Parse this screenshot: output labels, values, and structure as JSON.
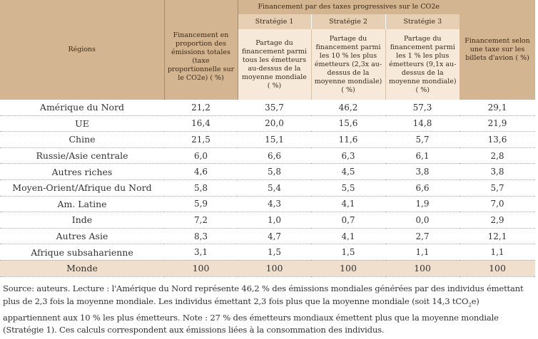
{
  "header": {
    "regions": "Régions",
    "proportional": "Financement en proportion des émissions totales (taxe proportionnelle sur le CO2e) ( %)",
    "progressive": "Financement par des taxes progressives sur le CO2e",
    "strategies": [
      {
        "label": "Stratégie 1",
        "desc": "Partage du financement parmi tous les émetteurs au-dessus de la moyenne mondiale ( %)"
      },
      {
        "label": "Stratégie 2",
        "desc": "Partage du financement parmi les 10 % les plus émetteurs (2,3x au-dessus de la moyenne mondiale) ( %)"
      },
      {
        "label": "Stratégie 3",
        "desc": "Partage du financement parmi les 1 % les plus émetteurs (9,1x au-dessus de la moyenne mondiale) ( %)"
      }
    ],
    "air": "Financement selon une taxe sur les billets d'avion ( %)"
  },
  "rows": [
    [
      "Amérique du Nord",
      "21,2",
      "35,7",
      "46,2",
      "57,3",
      "29,1"
    ],
    [
      "UE",
      "16,4",
      "20,0",
      "15,6",
      "14,8",
      "21,9"
    ],
    [
      "Chine",
      "21,5",
      "15,1",
      "11,6",
      "5,7",
      "13,6"
    ],
    [
      "Russie/Asie centrale",
      "6,0",
      "6,6",
      "6,3",
      "6,1",
      "2,8"
    ],
    [
      "Autres riches",
      "4,6",
      "5,8",
      "4,5",
      "3,8",
      "3,8"
    ],
    [
      "Moyen-Orient/Afrique du Nord",
      "5,8",
      "5,4",
      "5,5",
      "6,6",
      "5,7"
    ],
    [
      "Am. Latine",
      "5,9",
      "4,3",
      "4,1",
      "1,9",
      "7,0"
    ],
    [
      "Inde",
      "7,2",
      "1,0",
      "0,7",
      "0,0",
      "2,9"
    ],
    [
      "Autres Asie",
      "8,3",
      "4,7",
      "4,1",
      "2,7",
      "12,1"
    ],
    [
      "Afrique subsaharienne",
      "3,1",
      "1,5",
      "1,5",
      "1,1",
      "1,1"
    ]
  ],
  "total": [
    "Monde",
    "100",
    "100",
    "100",
    "100",
    "100"
  ],
  "note": {
    "part1": "Source: auteurs. Lecture : l'Amérique du Nord représente 46,2 % des émissions mondiales générées par des individus émettant plus de 2,3 fois la moyenne mondiale. Les individus émettant 2,3 fois plus que la moyenne mondiale (soit 14,3 tCO",
    "sub": "2",
    "part2": "e) appartiennent aux 10 % les plus émetteurs. Note : 27 % des émetteurs mondiaux émettent plus que la moyenne mondiale (Stratégie 1). Ces calculs correspondent aux émissions liées à la consommation des individus."
  }
}
